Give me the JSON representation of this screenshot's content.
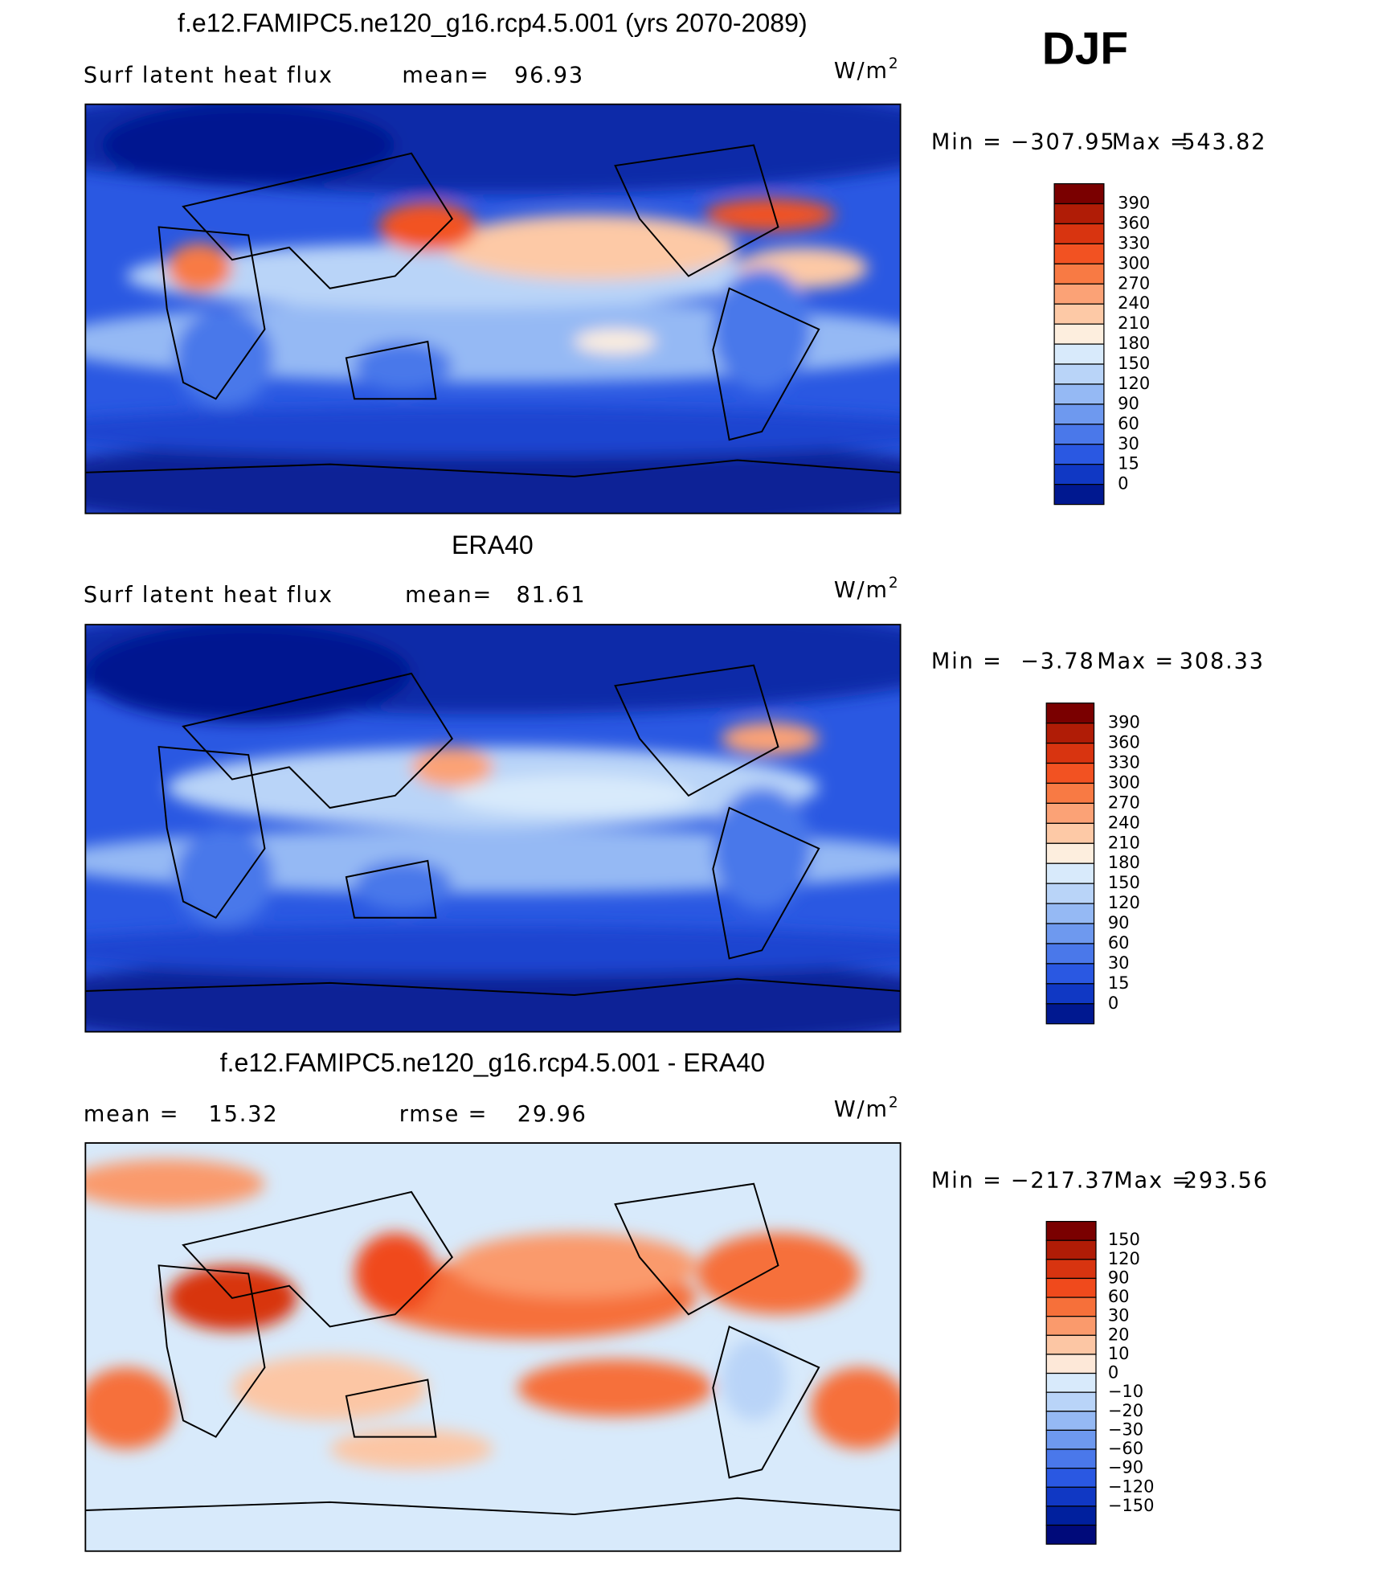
{
  "header": {
    "title": "DJF"
  },
  "panels": [
    {
      "title": "f.e12.FAMIPC5.ne120_g16.rcp4.5.001 (yrs 2070-2089)",
      "left_label": "Surf latent heat flux",
      "stats": [
        {
          "label": "mean=",
          "value": "96.93"
        }
      ],
      "units": {
        "base": "W/m",
        "exponent": "2"
      },
      "range": [
        {
          "label": "Min =",
          "value": "−307.95"
        },
        {
          "label": "Max =",
          "value": "543.82"
        }
      ],
      "colorbar": {
        "labels": [
          "390",
          "360",
          "330",
          "300",
          "270",
          "240",
          "210",
          "180",
          "150",
          "120",
          "90",
          "60",
          "30",
          "15",
          "0"
        ],
        "colors": [
          "#7a0000",
          "#b01c06",
          "#d83410",
          "#f25222",
          "#f87a44",
          "#fba276",
          "#fdc9a6",
          "#fdeede",
          "#d8eafb",
          "#b9d4f8",
          "#95b9f4",
          "#6e99ef",
          "#4a78ea",
          "#2a58e2",
          "#1038c4",
          "#001890"
        ]
      }
    },
    {
      "title": "ERA40",
      "left_label": "Surf latent heat flux",
      "stats": [
        {
          "label": "mean=",
          "value": "81.61"
        }
      ],
      "units": {
        "base": "W/m",
        "exponent": "2"
      },
      "range": [
        {
          "label": "Min =",
          "value": "−3.78"
        },
        {
          "label": "Max =",
          "value": "308.33"
        }
      ],
      "colorbar": {
        "labels": [
          "390",
          "360",
          "330",
          "300",
          "270",
          "240",
          "210",
          "180",
          "150",
          "120",
          "90",
          "60",
          "30",
          "15",
          "0"
        ],
        "colors": [
          "#7a0000",
          "#b01c06",
          "#d83410",
          "#f25222",
          "#f87a44",
          "#fba276",
          "#fdc9a6",
          "#fdeede",
          "#d8eafb",
          "#b9d4f8",
          "#95b9f4",
          "#6e99ef",
          "#4a78ea",
          "#2a58e2",
          "#1038c4",
          "#001890"
        ]
      }
    },
    {
      "title": "f.e12.FAMIPC5.ne120_g16.rcp4.5.001 - ERA40",
      "stats": [
        {
          "label": "mean =",
          "value": "15.32"
        },
        {
          "label": "rmse =",
          "value": "29.96"
        }
      ],
      "units": {
        "base": "W/m",
        "exponent": "2"
      },
      "range": [
        {
          "label": "Min =",
          "value": "−217.37"
        },
        {
          "label": "Max =",
          "value": "293.56"
        }
      ],
      "colorbar": {
        "labels": [
          "150",
          "120",
          "90",
          "60",
          "30",
          "20",
          "10",
          "0",
          "−10",
          "−20",
          "−30",
          "−60",
          "−90",
          "−120",
          "−150"
        ],
        "colors": [
          "#7a0000",
          "#b01c06",
          "#d83410",
          "#f04a1c",
          "#f6703a",
          "#fa9a6c",
          "#fcc6a4",
          "#fde8d8",
          "#d8eafb",
          "#b9d4f8",
          "#95b9f4",
          "#6e99ef",
          "#4a78ea",
          "#2a58e2",
          "#1038c4",
          "#00209e",
          "#000a7a"
        ]
      }
    }
  ]
}
